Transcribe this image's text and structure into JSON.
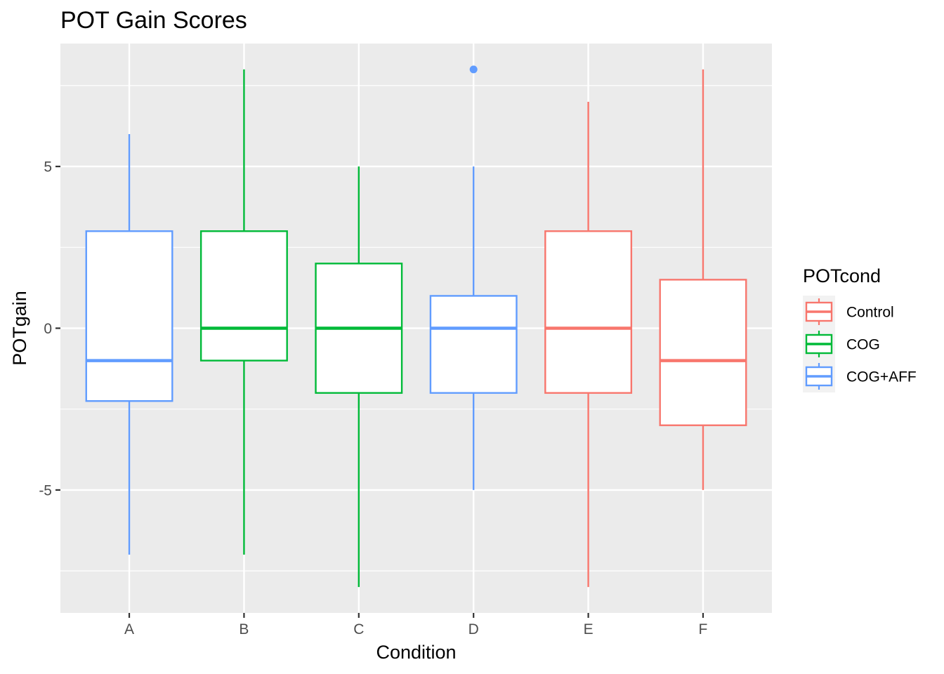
{
  "chart_data": {
    "type": "box",
    "title": "POT Gain Scores",
    "xlabel": "Condition",
    "ylabel": "POTgain",
    "categories": [
      "A",
      "B",
      "C",
      "D",
      "E",
      "F"
    ],
    "ylim": [
      -8.8,
      8.8
    ],
    "y_ticks": [
      -5,
      0,
      5
    ],
    "y_tick_labels": [
      "-5",
      "0",
      "5"
    ],
    "grid": true,
    "legend": {
      "title": "POTcond",
      "position": "right",
      "entries": [
        {
          "label": "Control",
          "color": "#F8766D"
        },
        {
          "label": "COG",
          "color": "#00BA38"
        },
        {
          "label": "COG+AFF",
          "color": "#619CFF"
        }
      ]
    },
    "boxes": [
      {
        "category": "A",
        "group": "COG+AFF",
        "min": -7,
        "q1": -2.25,
        "median": -1,
        "q3": 3,
        "max": 6,
        "outliers": []
      },
      {
        "category": "B",
        "group": "COG",
        "min": -7,
        "q1": -1,
        "median": 0,
        "q3": 3,
        "max": 8,
        "outliers": []
      },
      {
        "category": "C",
        "group": "COG",
        "min": -8,
        "q1": -2,
        "median": 0,
        "q3": 2,
        "max": 5,
        "outliers": []
      },
      {
        "category": "D",
        "group": "COG+AFF",
        "min": -5,
        "q1": -2,
        "median": 0,
        "q3": 1,
        "max": 5,
        "outliers": [
          8
        ]
      },
      {
        "category": "E",
        "group": "Control",
        "min": -8,
        "q1": -2,
        "median": 0,
        "q3": 3,
        "max": 7,
        "outliers": []
      },
      {
        "category": "F",
        "group": "Control",
        "min": -5,
        "q1": -3,
        "median": -1,
        "q3": 1.5,
        "max": 8,
        "outliers": []
      }
    ]
  }
}
